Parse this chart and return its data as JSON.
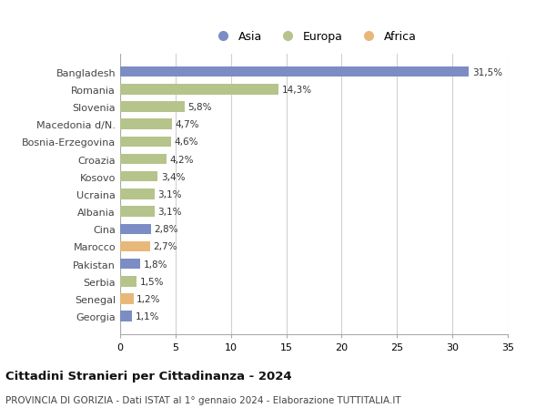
{
  "countries": [
    "Bangladesh",
    "Romania",
    "Slovenia",
    "Macedonia d/N.",
    "Bosnia-Erzegovina",
    "Croazia",
    "Kosovo",
    "Ucraina",
    "Albania",
    "Cina",
    "Marocco",
    "Pakistan",
    "Serbia",
    "Senegal",
    "Georgia"
  ],
  "values": [
    31.5,
    14.3,
    5.8,
    4.7,
    4.6,
    4.2,
    3.4,
    3.1,
    3.1,
    2.8,
    2.7,
    1.8,
    1.5,
    1.2,
    1.1
  ],
  "labels": [
    "31,5%",
    "14,3%",
    "5,8%",
    "4,7%",
    "4,6%",
    "4,2%",
    "3,4%",
    "3,1%",
    "3,1%",
    "2,8%",
    "2,7%",
    "1,8%",
    "1,5%",
    "1,2%",
    "1,1%"
  ],
  "continents": [
    "Asia",
    "Europa",
    "Europa",
    "Europa",
    "Europa",
    "Europa",
    "Europa",
    "Europa",
    "Europa",
    "Asia",
    "Africa",
    "Asia",
    "Europa",
    "Africa",
    "Asia"
  ],
  "colors": {
    "Asia": "#7b8dc4",
    "Europa": "#b5c48a",
    "Africa": "#e8b87a"
  },
  "legend_labels": [
    "Asia",
    "Europa",
    "Africa"
  ],
  "title": "Cittadini Stranieri per Cittadinanza - 2024",
  "subtitle": "PROVINCIA DI GORIZIA - Dati ISTAT al 1° gennaio 2024 - Elaborazione TUTTITALIA.IT",
  "xlim": [
    0,
    35
  ],
  "xticks": [
    0,
    5,
    10,
    15,
    20,
    25,
    30,
    35
  ],
  "background_color": "#ffffff",
  "grid_color": "#d0d0d0",
  "bar_height": 0.6
}
